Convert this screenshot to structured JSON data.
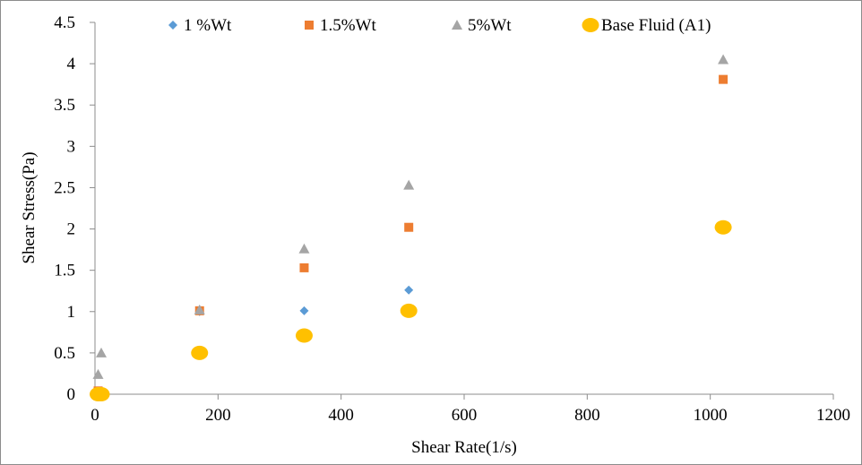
{
  "chart_data": {
    "type": "scatter",
    "title": "",
    "xlabel": "Shear Rate(1/s)",
    "ylabel": "Shear Stress(Pa)",
    "xlim": [
      0,
      1200
    ],
    "ylim": [
      0,
      4.5
    ],
    "x_ticks": [
      "0",
      "200",
      "400",
      "600",
      "800",
      "1000",
      "1200"
    ],
    "y_ticks": [
      "0",
      "0.5",
      "1",
      "1.5",
      "2",
      "2.5",
      "3",
      "3.5",
      "4",
      "4.5"
    ],
    "grid": false,
    "legend_position": "top",
    "series": [
      {
        "name": "1 %Wt",
        "marker": "diamond",
        "color": "#5b9bd5",
        "points": [
          [
            5.1,
            0.01
          ],
          [
            10.2,
            0.01
          ],
          [
            170,
            1.0
          ],
          [
            340,
            1.01
          ],
          [
            510,
            1.26
          ],
          [
            1021,
            2.02
          ]
        ]
      },
      {
        "name": "1.5%Wt",
        "marker": "square",
        "color": "#ed7d31",
        "points": [
          [
            5.1,
            0.04
          ],
          [
            10.2,
            0.01
          ],
          [
            170,
            1.01
          ],
          [
            340,
            1.53
          ],
          [
            510,
            2.02
          ],
          [
            1021,
            3.81
          ]
        ]
      },
      {
        "name": "5%Wt",
        "marker": "triangle",
        "color": "#a5a5a5",
        "points": [
          [
            5.1,
            0.24
          ],
          [
            10.2,
            0.5
          ],
          [
            170,
            1.02
          ],
          [
            340,
            1.76
          ],
          [
            510,
            2.53
          ],
          [
            1021,
            4.05
          ]
        ]
      },
      {
        "name": "Base Fluid (A1)",
        "marker": "circle",
        "color": "#ffc000",
        "points": [
          [
            5.1,
            0.0
          ],
          [
            10.2,
            0.0
          ],
          [
            170,
            0.5
          ],
          [
            340,
            0.71
          ],
          [
            510,
            1.01
          ],
          [
            1021,
            2.02
          ]
        ]
      }
    ]
  }
}
